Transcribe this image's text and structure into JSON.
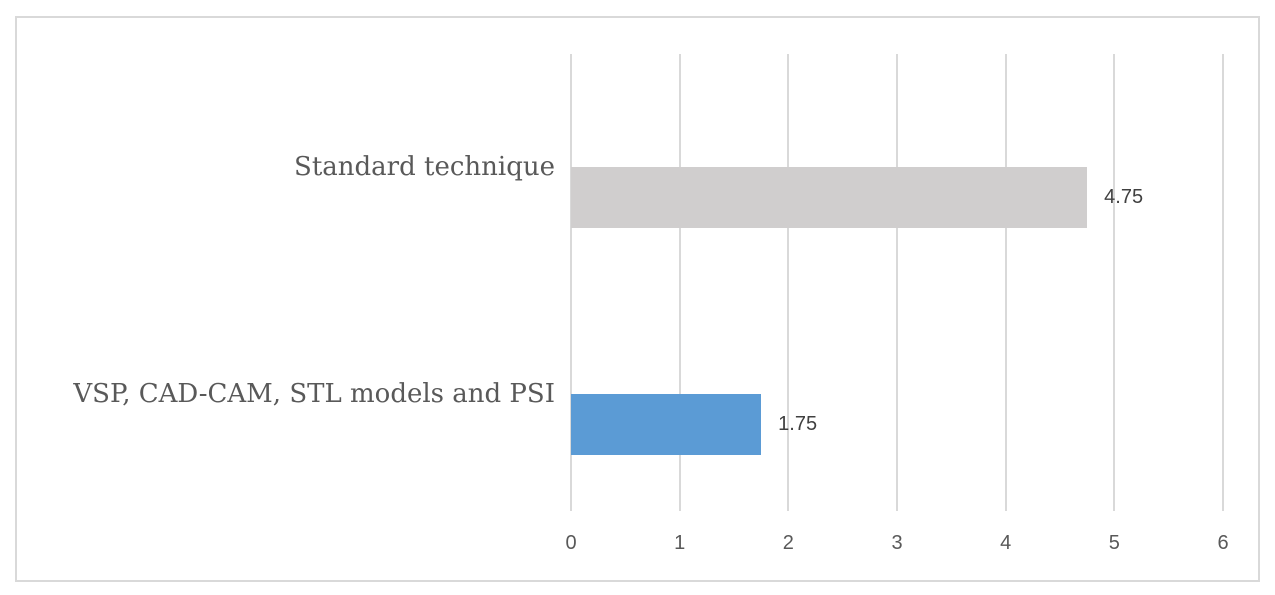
{
  "chart_data": {
    "type": "bar",
    "orientation": "horizontal",
    "title": "",
    "xlabel": "",
    "ylabel": "",
    "categories": [
      "Standard technique",
      "VSP, CAD-CAM, STL models and PSI"
    ],
    "values": [
      4.75,
      1.75
    ],
    "data_labels": [
      "4.75",
      "1.75"
    ],
    "bar_colors": [
      "#d0cece",
      "#5b9bd5"
    ],
    "x_ticks": [
      "0",
      "1",
      "2",
      "3",
      "4",
      "5",
      "6"
    ],
    "xlim": [
      0,
      6
    ],
    "grid": true,
    "legend": false,
    "gridline_color": "#d9d9d9",
    "frame_border_color": "#d9d9d9",
    "category_label_color": "#595959",
    "tick_label_color": "#595959",
    "value_label_color": "#404040",
    "background_color": "#ffffff"
  }
}
